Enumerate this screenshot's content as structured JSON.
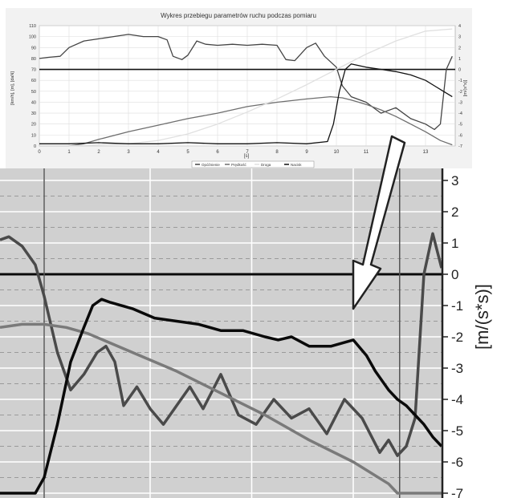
{
  "chart_data": [
    {
      "type": "line",
      "title": "Wykres przebiegu parametrów ruchu podczas pomiaru",
      "xlabel": "[s]",
      "ylabel": "[km/h], [m], [daN]",
      "y2label": "[m/(s*s)]",
      "xlim": [
        0,
        14
      ],
      "ylim": [
        0,
        110
      ],
      "y2lim": [
        -7,
        4
      ],
      "x_ticks": [
        "0",
        "1",
        "2",
        "3",
        "4",
        "5",
        "6",
        "7",
        "8",
        "9",
        "10",
        "11",
        "12",
        "13"
      ],
      "y_ticks": [
        "0",
        "10",
        "20",
        "30",
        "40",
        "50",
        "60",
        "70",
        "80",
        "90",
        "100",
        "110"
      ],
      "y2_ticks": [
        "-7",
        "-6",
        "-5",
        "-4",
        "-3",
        "-2",
        "-1",
        "0",
        "1",
        "2",
        "3",
        "4"
      ],
      "legend_position": "bottom",
      "grid": true,
      "series": [
        {
          "name": "Opóźnienie",
          "axis": "y2",
          "color": "#444444",
          "x": [
            0,
            0.3,
            0.7,
            1,
            1.5,
            2,
            2.5,
            3,
            3.5,
            4,
            4.3,
            4.5,
            4.8,
            5,
            5.3,
            5.6,
            6,
            6.5,
            7,
            7.5,
            8,
            8.3,
            8.6,
            9,
            9.3,
            9.6,
            10,
            10.2,
            10.5,
            11,
            11.5,
            12,
            12.5,
            13,
            13.3,
            13.5,
            13.7,
            13.9
          ],
          "y": [
            1,
            1.1,
            1.2,
            2,
            2.6,
            2.8,
            3,
            3.2,
            3,
            3,
            2.7,
            1.2,
            0.9,
            1.3,
            2.6,
            2.3,
            2.2,
            2.3,
            2.2,
            2.3,
            2.2,
            0.9,
            0.8,
            2,
            2.4,
            1.2,
            0.2,
            -1.5,
            -2.5,
            -3,
            -4,
            -3.5,
            -4.5,
            -5,
            -5.5,
            -5,
            0,
            1.2
          ]
        },
        {
          "name": "Prędkość",
          "axis": "y",
          "color": "#6e6e6e",
          "x": [
            0,
            0.5,
            1,
            1.5,
            2,
            3,
            4,
            5,
            6,
            7,
            8,
            9,
            9.8,
            10.2,
            10.5,
            11,
            11.5,
            12,
            12.5,
            13,
            13.5,
            13.9
          ],
          "y": [
            0,
            0,
            0,
            2,
            6,
            13,
            19,
            25,
            30,
            36,
            40,
            43,
            45,
            44,
            42,
            38,
            33,
            27,
            20,
            13,
            5,
            1
          ]
        },
        {
          "name": "Droga",
          "axis": "y",
          "color": "#e0e0e0",
          "x": [
            0,
            1,
            2,
            3,
            4,
            5,
            6,
            7,
            8,
            9,
            10,
            11,
            12,
            13,
            13.9
          ],
          "y": [
            0,
            0,
            1,
            2,
            5,
            11,
            20,
            31,
            43,
            56,
            70,
            84,
            96,
            105,
            107
          ]
        },
        {
          "name": "Nacisk",
          "axis": "y",
          "color": "#111111",
          "x": [
            0,
            1,
            2,
            3,
            4,
            5,
            6,
            7,
            8,
            9,
            9.7,
            9.9,
            10.1,
            10.3,
            10.5,
            11,
            11.5,
            12,
            12.5,
            13,
            13.3,
            13.6,
            13.9
          ],
          "y": [
            2,
            2,
            3,
            2,
            2,
            3,
            2,
            2,
            3,
            2,
            4,
            20,
            50,
            70,
            75,
            72,
            70,
            68,
            65,
            60,
            55,
            50,
            45
          ]
        }
      ]
    },
    {
      "type": "line",
      "ylabel": "[m/(s*s)]",
      "ylim": [
        -7,
        3
      ],
      "y_ticks": [
        "-7",
        "-6",
        "-5",
        "-4",
        "-3",
        "-2",
        "-1",
        "0",
        "1",
        "2",
        "3"
      ],
      "grid": true,
      "series": [
        {
          "name": "Opóźnienie",
          "color": "#4a4a4a",
          "x": [
            0,
            0.02,
            0.05,
            0.08,
            0.1,
            0.13,
            0.16,
            0.19,
            0.22,
            0.24,
            0.26,
            0.28,
            0.31,
            0.34,
            0.37,
            0.4,
            0.43,
            0.46,
            0.5,
            0.54,
            0.58,
            0.62,
            0.66,
            0.7,
            0.74,
            0.78,
            0.82,
            0.86,
            0.88,
            0.9,
            0.92,
            0.94,
            0.96,
            0.98,
            1
          ],
          "y": [
            1.1,
            1.2,
            0.9,
            0.3,
            -0.7,
            -2.5,
            -3.7,
            -3.2,
            -2.5,
            -2.3,
            -2.8,
            -4.2,
            -3.6,
            -4.3,
            -4.8,
            -4.2,
            -3.6,
            -4.3,
            -3.2,
            -4.5,
            -4.8,
            -4.0,
            -4.6,
            -4.3,
            -5.1,
            -4.0,
            -4.6,
            -5.7,
            -5.3,
            -5.8,
            -5.5,
            -4.6,
            0,
            1.3,
            0.2
          ]
        },
        {
          "name": "Prędkość",
          "color": "#7a7a7a",
          "x": [
            0,
            0.05,
            0.1,
            0.15,
            0.2,
            0.3,
            0.4,
            0.5,
            0.6,
            0.7,
            0.8,
            0.88,
            0.9,
            0.95,
            1
          ],
          "y": [
            -1.7,
            -1.6,
            -1.6,
            -1.7,
            -1.9,
            -2.5,
            -3.1,
            -3.8,
            -4.5,
            -5.3,
            -6.0,
            -6.7,
            -7.0,
            -7.0,
            -7.0
          ]
        },
        {
          "name": "Nacisk",
          "color": "#0a0a0a",
          "x": [
            0,
            0.05,
            0.08,
            0.1,
            0.13,
            0.16,
            0.19,
            0.21,
            0.23,
            0.25,
            0.3,
            0.35,
            0.4,
            0.45,
            0.5,
            0.55,
            0.6,
            0.63,
            0.66,
            0.7,
            0.75,
            0.8,
            0.83,
            0.85,
            0.88,
            0.9,
            0.92,
            0.94,
            0.96,
            0.98,
            1
          ],
          "y": [
            -7,
            -7,
            -7,
            -6.5,
            -4.8,
            -2.8,
            -1.7,
            -1.0,
            -0.8,
            -0.9,
            -1.1,
            -1.4,
            -1.5,
            -1.6,
            -1.8,
            -1.8,
            -2.0,
            -2.1,
            -2.0,
            -2.3,
            -2.3,
            -2.1,
            -2.6,
            -3.1,
            -3.7,
            -4.0,
            -4.2,
            -4.5,
            -4.8,
            -5.2,
            -5.5
          ]
        }
      ]
    }
  ]
}
